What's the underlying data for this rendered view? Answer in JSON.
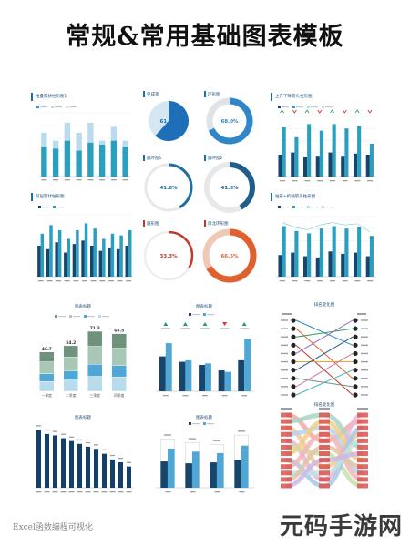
{
  "page": {
    "title": "常规&常用基础图表模板",
    "footer": "Excel函数编程可视化",
    "watermark": "元码手游网"
  },
  "colors": {
    "dark": "#17456b",
    "teal": "#2a9fc0",
    "mid": "#4fa7d6",
    "light": "#b9dcec",
    "gray": "#d7dade",
    "red": "#c0392b",
    "orange": "#e06030",
    "sage": "#6f927d"
  },
  "panels": {
    "p1": {
      "title": "堆叠簇状柱形图1"
    },
    "p2": {
      "title": "完成率"
    },
    "p3": {
      "title": "环形图"
    },
    "p4": {
      "title": "上升下降箭头柱形图"
    },
    "p5": {
      "title": "双层簇状柱形图"
    },
    "p6": {
      "title": "圆环图1"
    },
    "p7": {
      "title": "圆环图2"
    },
    "p8": {
      "title": "柱形+折线箭头柱形图"
    },
    "p9": {
      "title": "圆形图"
    },
    "p10": {
      "title": "南北环形图"
    },
    "p11": {
      "title": "图表标题"
    },
    "p12": {
      "title": "图表标题"
    },
    "p13": {
      "title": "排名变化图"
    },
    "p14": {
      "title": "图表标题"
    },
    "p15": {
      "title": "图表标题"
    },
    "p16": {
      "title": "排名变化图"
    }
  },
  "donut_labels": {
    "d2": "61.7%",
    "d3": "68.0%",
    "d6": "41.8%",
    "d7": "41.8%",
    "d9": "33.3%",
    "d10": "66.5%"
  },
  "chart_data": [
    {
      "id": "p1",
      "type": "bar",
      "categories": [
        "1",
        "2",
        "3",
        "4",
        "5",
        "6",
        "7",
        "8"
      ],
      "series": [
        {
          "values": [
            15,
            14,
            18,
            13,
            17,
            16,
            18,
            15
          ]
        },
        {
          "values": [
            22,
            18,
            27,
            22,
            27,
            18,
            25,
            18
          ]
        }
      ]
    },
    {
      "id": "p2",
      "type": "pie",
      "values": [
        61.7,
        38.3
      ]
    },
    {
      "id": "p3",
      "type": "pie",
      "values": [
        68.0,
        32.0
      ]
    },
    {
      "id": "p4",
      "type": "bar",
      "categories": [
        "1",
        "2",
        "3",
        "4",
        "5",
        "6",
        "7",
        "8"
      ],
      "series": [
        {
          "values": [
            20,
            22,
            18,
            19,
            22,
            19,
            21,
            20
          ]
        },
        {
          "values": [
            45,
            36,
            48,
            42,
            48,
            44,
            46,
            30
          ]
        }
      ]
    },
    {
      "id": "p5",
      "type": "bar",
      "categories": [
        "1",
        "2",
        "3",
        "4",
        "5",
        "6",
        "7",
        "8",
        "9",
        "10",
        "11"
      ],
      "series": [
        {
          "values": [
            18,
            16,
            20,
            14,
            19,
            21,
            18,
            15,
            17,
            16,
            18
          ]
        },
        {
          "values": [
            25,
            30,
            27,
            22,
            27,
            31,
            28,
            22,
            25,
            24,
            27
          ]
        }
      ]
    },
    {
      "id": "p6",
      "type": "pie",
      "values": [
        41.8,
        58.2
      ]
    },
    {
      "id": "p7",
      "type": "pie",
      "values": [
        41.8,
        58.2
      ]
    },
    {
      "id": "p8",
      "type": "bar",
      "categories": [
        "1",
        "2",
        "3",
        "4",
        "5",
        "6",
        "7",
        "8"
      ],
      "series": [
        {
          "values": [
            18,
            20,
            17,
            16,
            21,
            19,
            20,
            17
          ]
        },
        {
          "values": [
            42,
            38,
            36,
            40,
            42,
            40,
            41,
            34
          ]
        }
      ]
    },
    {
      "id": "p9",
      "type": "pie",
      "values": [
        33.3,
        66.7
      ]
    },
    {
      "id": "p10",
      "type": "pie",
      "values": [
        66.5,
        33.5
      ]
    },
    {
      "id": "p11",
      "type": "bar",
      "categories": [
        "一季度",
        "二季度",
        "三季度",
        "四季度"
      ],
      "labels": [
        "46.7",
        "54.2",
        "71.3",
        "68.5"
      ],
      "values": [
        46.7,
        54.2,
        71.3,
        68.5
      ]
    },
    {
      "id": "p12",
      "type": "bar",
      "categories": [
        "1",
        "2",
        "3",
        "4",
        "5"
      ],
      "series": [
        {
          "values": [
            45,
            38,
            34,
            27,
            40
          ]
        },
        {
          "values": [
            62,
            40,
            36,
            25,
            68
          ]
        }
      ]
    },
    {
      "id": "p13",
      "type": "line",
      "left": [
        "1",
        "2",
        "3",
        "4",
        "5",
        "6",
        "7",
        "8",
        "9",
        "10"
      ],
      "right": [
        "1",
        "2",
        "3",
        "4",
        "5",
        "6",
        "7",
        "8",
        "9",
        "10"
      ]
    },
    {
      "id": "p14",
      "type": "bar",
      "categories": [
        "1",
        "2",
        "3",
        "4",
        "5",
        "6",
        "7",
        "8",
        "9",
        "10",
        "11",
        "12"
      ],
      "values": [
        82,
        76,
        74,
        70,
        66,
        62,
        58,
        55,
        48,
        40,
        36,
        30
      ]
    },
    {
      "id": "p15",
      "type": "bar",
      "categories": [
        "1",
        "2",
        "3",
        "4"
      ],
      "series": [
        {
          "values": [
            28,
            26,
            27,
            30
          ]
        },
        {
          "values": [
            52,
            48,
            46,
            56
          ]
        }
      ]
    },
    {
      "id": "p16",
      "type": "line",
      "left": [
        "1",
        "2",
        "3",
        "4",
        "5",
        "6",
        "7",
        "8",
        "9",
        "10",
        "11",
        "12"
      ]
    }
  ]
}
